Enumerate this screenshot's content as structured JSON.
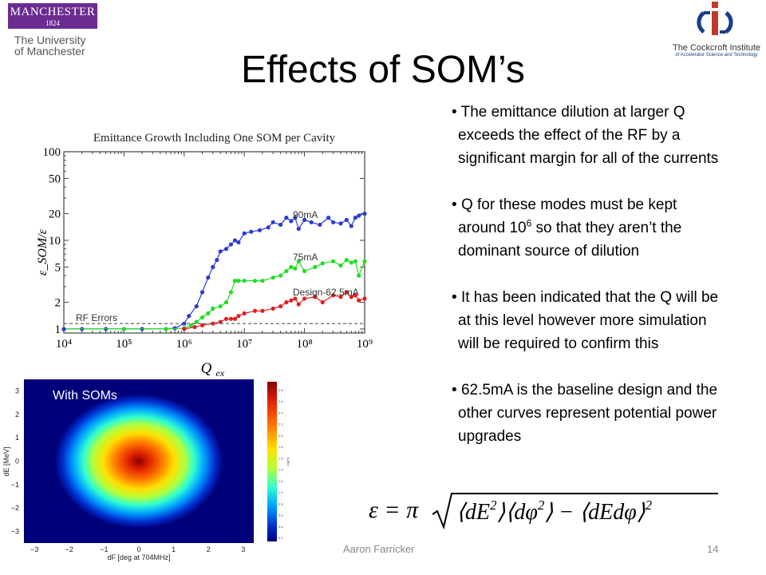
{
  "logos": {
    "manchester": {
      "wordmark": "MANCHESTER",
      "year": "1824",
      "line1": "The University",
      "line2": "of Manchester",
      "brand_color": "#6b2c91"
    },
    "cockcroft": {
      "name": "The Cockcroft Institute",
      "subtitle": "of Accelerator Science and Technology",
      "brand_color": "#c0392b"
    }
  },
  "slide": {
    "title": "Effects of SOM’s",
    "bullets": [
      {
        "text": "The emittance dilution at larger Q exceeds the effect of the RF by a significant margin for all of the currents"
      },
      {
        "pre": "Q for these modes must be kept around 10",
        "sup": "6",
        "post": " so that they aren’t the dominant source of dilution"
      },
      {
        "text": "It has been indicated that the Q will be at this level however more simulation will be required to confirm this"
      },
      {
        "text": "62.5mA is the baseline design and the other curves represent potential power upgrades"
      }
    ],
    "footer": {
      "author": "Aaron Farricker",
      "page": "14"
    }
  },
  "chart_data": [
    {
      "type": "line",
      "title": "Emittance Growth Including One SOM per Cavity",
      "xlabel": "Q_ex",
      "ylabel": "ε_SOM/ε",
      "x_scale": "log",
      "y_scale": "log",
      "xlim": [
        10000,
        1000000000
      ],
      "ylim": [
        0.9,
        100
      ],
      "x_ticks": [
        "10⁴",
        "10⁵",
        "10⁶",
        "10⁷",
        "10⁸",
        "10⁹"
      ],
      "y_ticks": [
        1,
        2,
        5,
        10,
        20,
        50,
        100
      ],
      "annotations": [
        "90mA",
        "75mA",
        "Design-62.5mA",
        "RF Errors"
      ],
      "series": [
        {
          "name": "90mA",
          "color": "#2b3bd6",
          "x": [
            10000,
            20000,
            50000,
            100000,
            200000,
            500000,
            700000,
            1000000,
            1200000,
            1600000,
            2000000,
            2500000,
            3000000,
            3500000,
            4000000,
            5000000,
            6000000,
            7000000,
            8000000,
            10000000,
            13000000,
            18000000,
            25000000,
            30000000,
            40000000,
            50000000,
            60000000,
            70000000,
            80000000,
            100000000,
            130000000,
            180000000,
            250000000,
            300000000,
            400000000,
            500000000,
            600000000,
            700000000,
            800000000,
            1000000000
          ],
          "y": [
            1,
            1,
            1,
            1,
            1,
            1,
            1.02,
            1.15,
            1.4,
            1.8,
            2.6,
            3.8,
            5,
            6,
            7.5,
            8,
            9,
            10,
            9.5,
            12,
            12.5,
            13,
            14,
            16,
            15,
            18,
            16.5,
            18,
            13.5,
            17,
            16,
            15,
            18,
            16,
            15.5,
            17,
            14.5,
            18,
            19,
            20
          ]
        },
        {
          "name": "75mA",
          "color": "#22dd22",
          "x": [
            10000,
            100000,
            500000,
            1000000,
            1300000,
            1600000,
            2000000,
            2500000,
            3000000,
            4000000,
            5000000,
            6000000,
            7000000,
            8000000,
            10000000,
            15000000,
            20000000,
            30000000,
            40000000,
            50000000,
            60000000,
            70000000,
            80000000,
            100000000,
            150000000,
            200000000,
            300000000,
            400000000,
            500000000,
            600000000,
            700000000,
            800000000,
            1000000000
          ],
          "y": [
            1,
            1,
            1,
            1.02,
            1.1,
            1.2,
            1.35,
            1.5,
            1.7,
            1.8,
            2,
            2.6,
            3.5,
            3.5,
            3.5,
            3.5,
            3.5,
            3.8,
            4,
            4.5,
            5,
            4.8,
            5.8,
            4.5,
            5,
            5.5,
            5.8,
            5.2,
            6,
            5.6,
            5.8,
            4,
            5.8
          ]
        },
        {
          "name": "Design-62.5mA",
          "color": "#e02020",
          "x": [
            1000000,
            1500000,
            2000000,
            3000000,
            4000000,
            5000000,
            6000000,
            7000000,
            8000000,
            10000000,
            15000000,
            20000000,
            30000000,
            40000000,
            50000000,
            60000000,
            70000000,
            80000000,
            100000000,
            150000000,
            200000000,
            300000000,
            400000000,
            500000000,
            600000000,
            700000000,
            800000000,
            1000000000
          ],
          "y": [
            1,
            1.05,
            1.1,
            1.15,
            1.2,
            1.3,
            1.3,
            1.3,
            1.4,
            1.5,
            1.6,
            1.6,
            1.7,
            1.8,
            2,
            2.1,
            2.2,
            1.9,
            2.2,
            2.3,
            2,
            2.4,
            2.3,
            2.6,
            2.3,
            2.4,
            2.1,
            2.2
          ]
        },
        {
          "name": "RF Errors",
          "color": "#555555",
          "dashed": true,
          "x": [
            10000,
            1000000000
          ],
          "y": [
            1.15,
            1.15
          ]
        }
      ]
    },
    {
      "type": "heatmap",
      "title": "With SOMs",
      "xlabel": "dF [deg at 704MHz]",
      "ylabel": "dE [MeV]",
      "xlim": [
        -3.3,
        3.3
      ],
      "ylim": [
        -3.5,
        3.5
      ],
      "x_ticks": [
        -3,
        -2,
        -1,
        0,
        1,
        2,
        3
      ],
      "y_ticks": [
        -3,
        -2,
        -1,
        0,
        1,
        2,
        3
      ],
      "distribution": "gaussian",
      "center": [
        0,
        0
      ],
      "sigma_x": 1.1,
      "sigma_y": 1.4,
      "colorbar_label": "log(N)",
      "colorbar_ticks": [
        "2.8",
        "2.6",
        "2.4",
        "2.2",
        "2.0",
        "1.8",
        "1.6",
        "1.4",
        "1.2",
        "1.0",
        "0.8",
        "0.6",
        "0.4",
        "0.2"
      ]
    }
  ],
  "formula": {
    "lhs": "ε = π",
    "radicand_parts": [
      "⟨dE",
      "2",
      "⟩⟨dφ",
      "2",
      "⟩ − ⟨dEdφ⟩",
      "2"
    ]
  }
}
